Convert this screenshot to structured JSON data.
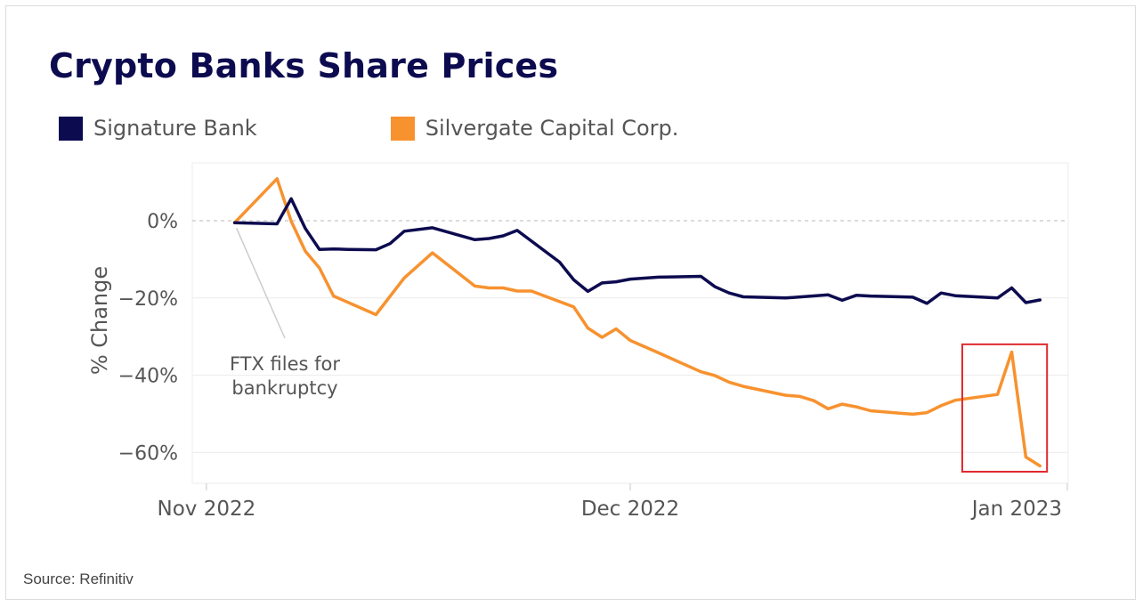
{
  "source": "Source: Refinitiv",
  "chart_data": {
    "type": "line",
    "title": "Crypto Banks Share Prices",
    "xlabel": "",
    "ylabel": "% Change",
    "x_tick_labels": [
      "Nov 2022",
      "Dec 2022",
      "Jan 2023"
    ],
    "y_tick_labels": [
      "0%",
      "−20%",
      "−40%",
      "−60%"
    ],
    "ylim": [
      -68,
      15
    ],
    "xlim": [
      -1,
      61
    ],
    "x_unit": "days since Nov 1, 2022",
    "grid": true,
    "legend_position": "top-left",
    "series": [
      {
        "name": "Signature Bank",
        "color": "#0d0b4f",
        "x": [
          2,
          5,
          6,
          7,
          8,
          9,
          10,
          12,
          13,
          14,
          16,
          19,
          20,
          21,
          22,
          25,
          26,
          27,
          28,
          29,
          30,
          32,
          35,
          36,
          37,
          38,
          41,
          44,
          45,
          46,
          47,
          50,
          51,
          52,
          53,
          56,
          57,
          58,
          59
        ],
        "values": [
          -0.5,
          -0.8,
          5.7,
          -2,
          -7.4,
          -7.3,
          -7.4,
          -7.5,
          -5.9,
          -2.7,
          -1.8,
          -4.9,
          -4.6,
          -3.9,
          -2.5,
          -10.7,
          -15.3,
          -18.3,
          -16.1,
          -15.8,
          -15.1,
          -14.6,
          -14.4,
          -17.1,
          -18.7,
          -19.7,
          -20.0,
          -19.2,
          -20.6,
          -19.3,
          -19.5,
          -19.8,
          -21.4,
          -18.7,
          -19.4,
          -20.0,
          -17.4,
          -21.2,
          -20.5
        ]
      },
      {
        "name": "Silvergate Capital Corp.",
        "color": "#f7922f",
        "x": [
          2,
          5,
          6,
          7,
          8,
          9,
          12,
          14,
          16,
          19,
          20,
          21,
          22,
          23,
          26,
          27,
          28,
          29,
          30,
          32,
          35,
          36,
          37,
          38,
          41,
          42,
          43,
          44,
          45,
          46,
          47,
          50,
          51,
          52,
          53,
          56,
          57,
          58,
          59
        ],
        "values": [
          -0.5,
          10.9,
          -0.1,
          -7.9,
          -12.2,
          -19.5,
          -24.3,
          -14.8,
          -8.3,
          -16.9,
          -17.4,
          -17.4,
          -18.2,
          -18.2,
          -22.3,
          -27.8,
          -30.2,
          -28.0,
          -31.0,
          -34.2,
          -39.1,
          -40.1,
          -41.8,
          -42.9,
          -45.2,
          -45.5,
          -46.6,
          -48.7,
          -47.5,
          -48.2,
          -49.2,
          -50.1,
          -49.7,
          -47.9,
          -46.5,
          -45.0,
          -34.0,
          -61.2,
          -63.5
        ]
      }
    ],
    "annotations": [
      {
        "text": [
          "FTX files for",
          "bankruptcy"
        ],
        "x": 2,
        "y": -0.5
      }
    ],
    "highlight_box": {
      "x": [
        53.5,
        59.5
      ],
      "y": [
        -32,
        -65
      ]
    }
  }
}
